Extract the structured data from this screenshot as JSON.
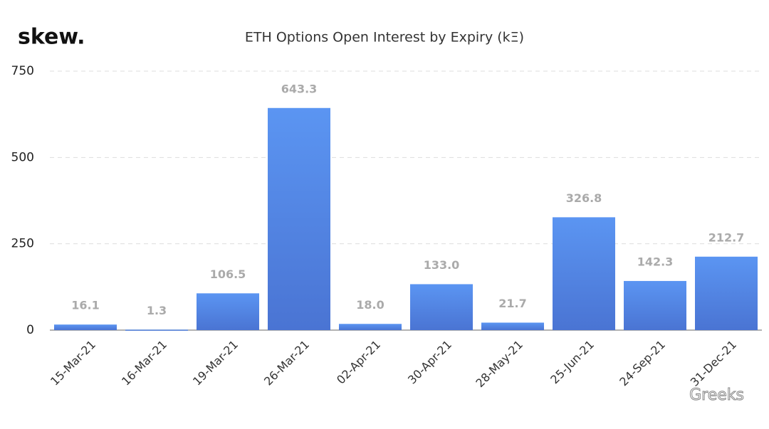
{
  "logo": "skew.",
  "watermark": "Greeks",
  "chart_data": {
    "type": "bar",
    "title": "ETH Options Open Interest by Expiry (kΞ)",
    "categories": [
      "15-Mar-21",
      "16-Mar-21",
      "19-Mar-21",
      "26-Mar-21",
      "02-Apr-21",
      "30-Apr-21",
      "28-May-21",
      "25-Jun-21",
      "24-Sep-21",
      "31-Dec-21"
    ],
    "values": [
      16.1,
      1.3,
      106.5,
      643.3,
      18.0,
      133.0,
      21.7,
      326.8,
      142.3,
      212.7
    ],
    "value_labels": [
      "16.1",
      "1.3",
      "106.5",
      "643.3",
      "18.0",
      "133.0",
      "21.7",
      "326.8",
      "142.3",
      "212.7"
    ],
    "color": "#5b95f2",
    "ylim": [
      0,
      750
    ],
    "yticks": [
      0,
      250,
      500,
      750
    ],
    "grid": true
  }
}
